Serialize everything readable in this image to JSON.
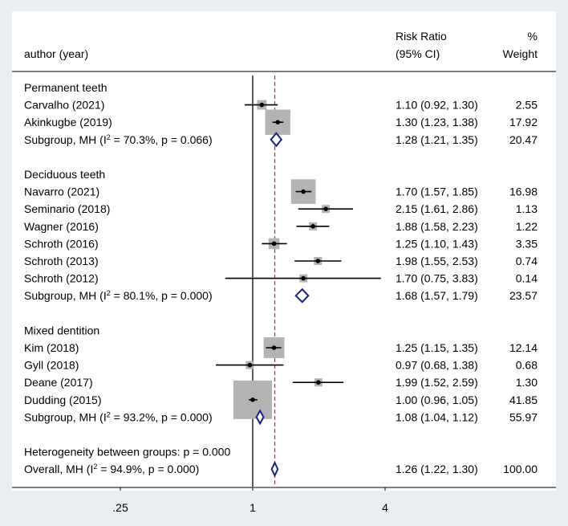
{
  "chart_data": {
    "type": "forest",
    "header": {
      "study": "author (year)",
      "estimate_line1": "Risk Ratio",
      "estimate_line2": "(95% CI)",
      "weight_line1": "%",
      "weight_line2": "Weight"
    },
    "groups": [
      {
        "name": "Permanent teeth",
        "studies": [
          {
            "label": "Carvalho (2021)",
            "rr": 1.1,
            "lo": 0.92,
            "hi": 1.3,
            "ci_text": "1.10 (0.92, 1.30)",
            "weight": "2.55"
          },
          {
            "label": "Akinkugbe (2019)",
            "rr": 1.3,
            "lo": 1.23,
            "hi": 1.38,
            "ci_text": "1.30 (1.23, 1.38)",
            "weight": "17.92"
          }
        ],
        "subgroup": {
          "label_pre": "Subgroup, MH (I",
          "sup": "2",
          "label_post": " = 70.3%, p = 0.066)",
          "rr": 1.28,
          "lo": 1.21,
          "hi": 1.35,
          "ci_text": "1.28 (1.21, 1.35)",
          "weight": "20.47"
        }
      },
      {
        "name": "Deciduous teeth",
        "studies": [
          {
            "label": "Navarro (2021)",
            "rr": 1.7,
            "lo": 1.57,
            "hi": 1.85,
            "ci_text": "1.70 (1.57, 1.85)",
            "weight": "16.98"
          },
          {
            "label": "Seminario (2018)",
            "rr": 2.15,
            "lo": 1.61,
            "hi": 2.86,
            "ci_text": "2.15 (1.61, 2.86)",
            "weight": "1.13"
          },
          {
            "label": "Wagner (2016)",
            "rr": 1.88,
            "lo": 1.58,
            "hi": 2.23,
            "ci_text": "1.88 (1.58, 2.23)",
            "weight": "1.22"
          },
          {
            "label": "Schroth (2016)",
            "rr": 1.25,
            "lo": 1.1,
            "hi": 1.43,
            "ci_text": "1.25 (1.10, 1.43)",
            "weight": "3.35"
          },
          {
            "label": "Schroth (2013)",
            "rr": 1.98,
            "lo": 1.55,
            "hi": 2.53,
            "ci_text": "1.98 (1.55, 2.53)",
            "weight": "0.74"
          },
          {
            "label": "Schroth (2012)",
            "rr": 1.7,
            "lo": 0.75,
            "hi": 3.83,
            "ci_text": "1.70 (0.75, 3.83)",
            "weight": "0.14"
          }
        ],
        "subgroup": {
          "label_pre": "Subgroup, MH (I",
          "sup": "2",
          "label_post": " = 80.1%, p = 0.000)",
          "rr": 1.68,
          "lo": 1.57,
          "hi": 1.79,
          "ci_text": "1.68 (1.57, 1.79)",
          "weight": "23.57"
        }
      },
      {
        "name": "Mixed dentition",
        "studies": [
          {
            "label": "Kim (2018)",
            "rr": 1.25,
            "lo": 1.15,
            "hi": 1.35,
            "ci_text": "1.25 (1.15, 1.35)",
            "weight": "12.14"
          },
          {
            "label": "Gyll (2018)",
            "rr": 0.97,
            "lo": 0.68,
            "hi": 1.38,
            "ci_text": "0.97 (0.68, 1.38)",
            "weight": "0.68"
          },
          {
            "label": "Deane (2017)",
            "rr": 1.99,
            "lo": 1.52,
            "hi": 2.59,
            "ci_text": "1.99 (1.52, 2.59)",
            "weight": "1.30"
          },
          {
            "label": "Dudding (2015)",
            "rr": 1.0,
            "lo": 0.96,
            "hi": 1.05,
            "ci_text": "1.00 (0.96, 1.05)",
            "weight": "41.85"
          }
        ],
        "subgroup": {
          "label_pre": "Subgroup, MH (I",
          "sup": "2",
          "label_post": " = 93.2%, p = 0.000)",
          "rr": 1.08,
          "lo": 1.04,
          "hi": 1.12,
          "ci_text": "1.08 (1.04, 1.12)",
          "weight": "55.97"
        }
      }
    ],
    "heterogeneity": "Heterogeneity between groups: p = 0.000",
    "overall": {
      "label_pre": "Overall, MH (I",
      "sup": "2",
      "label_post": " = 94.9%, p = 0.000)",
      "rr": 1.26,
      "lo": 1.22,
      "hi": 1.3,
      "ci_text": "1.26 (1.22, 1.30)",
      "weight": "100.00"
    },
    "x_axis": {
      "scale": "log",
      "ticks": [
        0.25,
        1,
        4
      ],
      "tick_labels": [
        ".25",
        "1",
        "4"
      ],
      "null_line": 1
    },
    "colors": {
      "diamond": "#1a237e",
      "ref_line": "#8b3a4a",
      "box": "#b3b3b3",
      "background": "#e8eef2"
    }
  }
}
